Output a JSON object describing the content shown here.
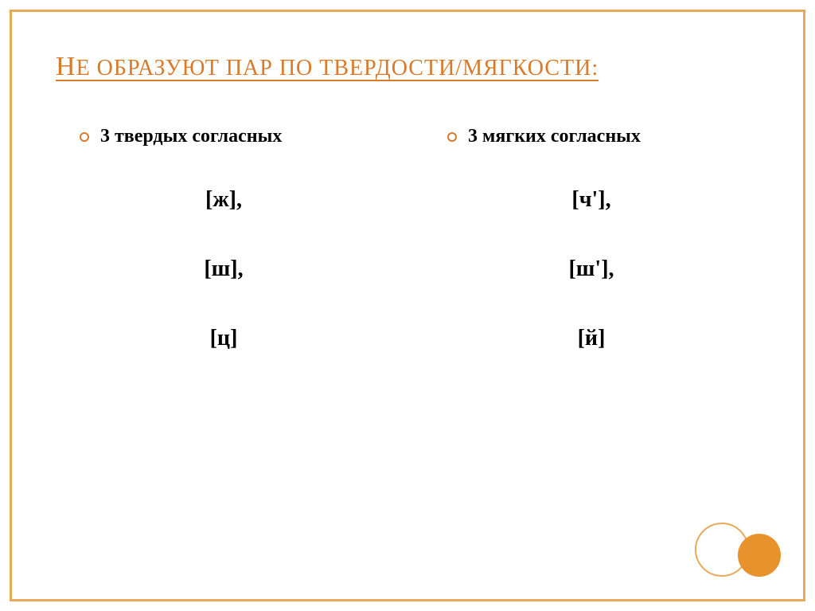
{
  "title": {
    "cap": "Н",
    "rest": "Е ОБРАЗУЮТ ПАР ПО ТВЕРДОСТИ/МЯГКОСТИ:"
  },
  "columns": {
    "left": {
      "header": "3 твердых согласных",
      "items": [
        "[ж],",
        "[ш],",
        "[ц]"
      ]
    },
    "right": {
      "header": "3 мягких согласных",
      "items": [
        "[ч'],",
        "[ш'],",
        "[й]"
      ]
    }
  },
  "colors": {
    "border": "#e8a85a",
    "title": "#d87a2a",
    "bullet": "#d87a2a",
    "circle_fill": "#e8922e",
    "text": "#000000",
    "background": "#ffffff"
  }
}
